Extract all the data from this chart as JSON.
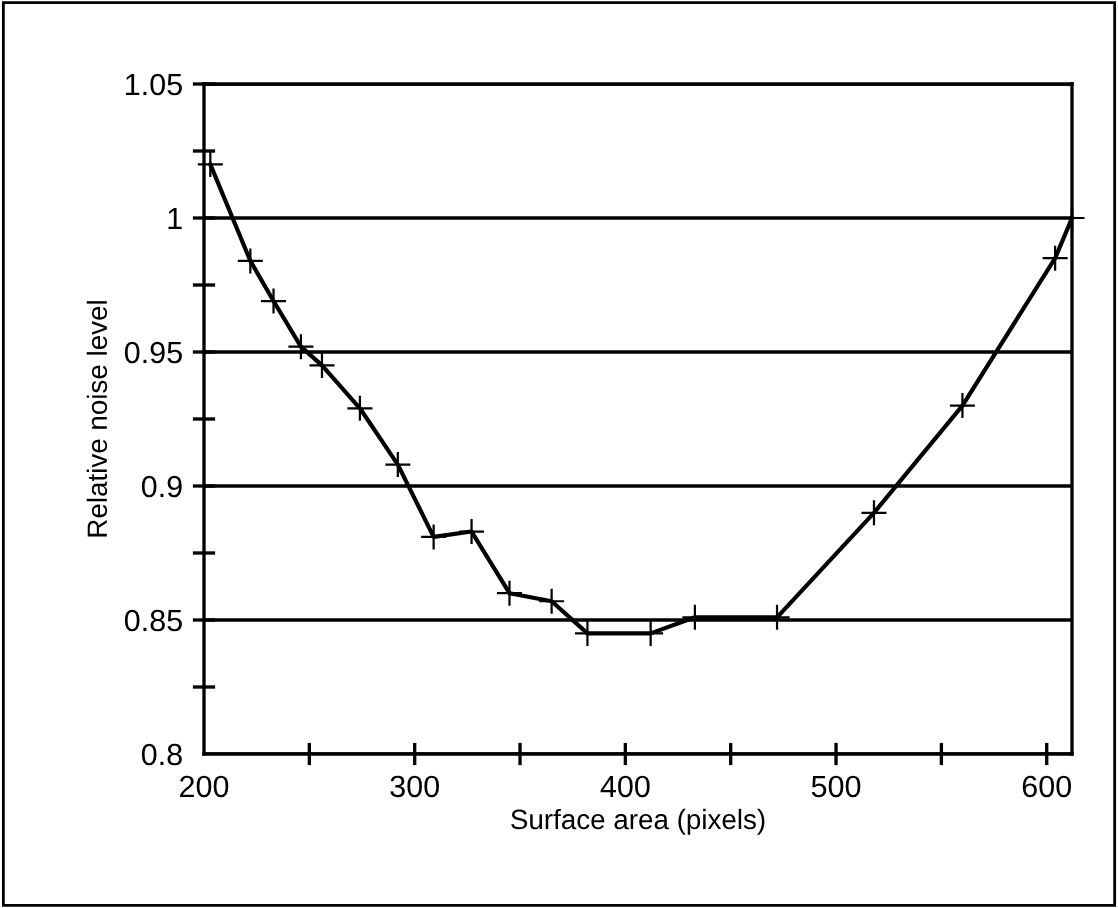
{
  "chart_data": {
    "type": "line",
    "xlabel": "Surface area (pixels)",
    "ylabel": "Relative noise level",
    "x": [
      203,
      222,
      233,
      246,
      256,
      274,
      292,
      309,
      327,
      345,
      365,
      382,
      412,
      433,
      472,
      518,
      560,
      604,
      612
    ],
    "series": [
      {
        "color": "#000000",
        "values": [
          1.02,
          0.984,
          0.969,
          0.952,
          0.945,
          0.929,
          0.908,
          0.881,
          0.883,
          0.86,
          0.857,
          0.845,
          0.845,
          0.851,
          0.851,
          0.89,
          0.93,
          0.985,
          1.0
        ]
      }
    ],
    "xlim": [
      200,
      612
    ],
    "ylim": [
      0.8,
      1.05
    ],
    "xticks": [
      200,
      {
        "value": 250,
        "label": null
      },
      300,
      {
        "value": 350,
        "label": null
      },
      400,
      {
        "value": 450,
        "label": null
      },
      500,
      {
        "value": 550,
        "label": null
      },
      600
    ],
    "yticks": [
      0.8,
      {
        "value": 0.825,
        "label": null
      },
      0.85,
      {
        "value": 0.875,
        "label": null
      },
      0.9,
      {
        "value": 0.925,
        "label": null
      },
      0.95,
      {
        "value": 0.975,
        "label": null
      },
      1,
      {
        "value": 1.025,
        "label": null
      },
      1.05
    ],
    "grid": "y",
    "marker": "cross",
    "line_style": "solid"
  }
}
